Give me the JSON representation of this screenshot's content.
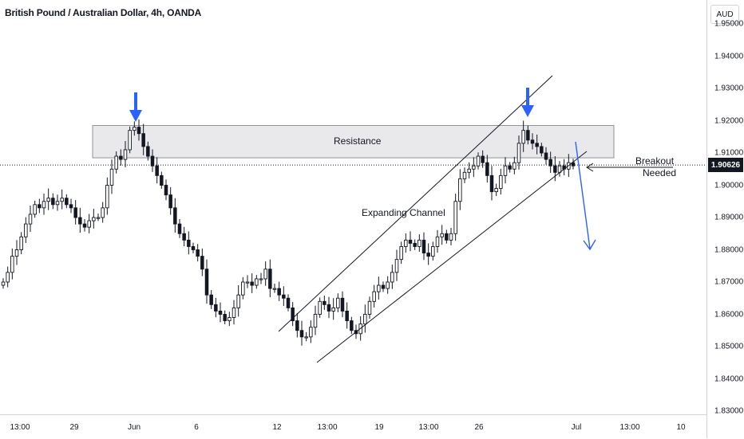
{
  "header": {
    "symbol_title": "British Pound / Australian Dollar, 4h, OANDA"
  },
  "price_axis": {
    "currency": "AUD",
    "last_price": "1.90626",
    "ticks": [
      "1.95000",
      "1.94000",
      "1.93000",
      "1.92000",
      "1.91000",
      "1.90000",
      "1.89000",
      "1.88000",
      "1.87000",
      "1.86000",
      "1.85000",
      "1.84000",
      "1.83000"
    ]
  },
  "time_axis": {
    "ticks": [
      "13:00",
      "29",
      "Jun",
      "6",
      "12",
      "13:00",
      "19",
      "13:00",
      "26",
      "Jul",
      "13:00",
      "10"
    ]
  },
  "annotations": {
    "resistance": "Resistance",
    "channel": "Expanding Channel",
    "breakout_line1": "Breakout",
    "breakout_line2": "Needed"
  },
  "colors": {
    "up": "#131722",
    "down": "#131722",
    "arrow": "#2962ff",
    "resistance_fill": "#e9e9ec",
    "resistance_border": "#787b86"
  },
  "chart_data": {
    "type": "candlestick",
    "symbol": "GBPAUD",
    "timeframe": "4h",
    "y_axis": {
      "min": 1.83,
      "max": 1.95,
      "scale": "linear",
      "label": "AUD"
    },
    "resistance_zone": {
      "low": 1.9085,
      "high": 1.9185
    },
    "last_price": 1.90626,
    "close_path": [
      1.87,
      1.873,
      1.878,
      1.88,
      1.884,
      1.888,
      1.891,
      1.894,
      1.893,
      1.895,
      1.896,
      1.894,
      1.895,
      1.896,
      1.894,
      1.893,
      1.89,
      1.888,
      1.887,
      1.889,
      1.89,
      1.89,
      1.893,
      1.9,
      1.905,
      1.909,
      1.908,
      1.911,
      1.917,
      1.918,
      1.916,
      1.912,
      1.909,
      1.906,
      1.903,
      1.9,
      1.897,
      1.893,
      1.888,
      1.885,
      1.883,
      1.881,
      1.88,
      1.878,
      1.874,
      1.866,
      1.863,
      1.861,
      1.86,
      1.858,
      1.859,
      1.862,
      1.866,
      1.87,
      1.87,
      1.869,
      1.871,
      1.871,
      1.874,
      1.868,
      1.868,
      1.866,
      1.865,
      1.862,
      1.858,
      1.855,
      1.853,
      1.853,
      1.856,
      1.86,
      1.864,
      1.863,
      1.861,
      1.862,
      1.865,
      1.861,
      1.858,
      1.855,
      1.854,
      1.857,
      1.86,
      1.864,
      1.867,
      1.869,
      1.868,
      1.87,
      1.873,
      1.877,
      1.881,
      1.883,
      1.882,
      1.881,
      1.883,
      1.879,
      1.878,
      1.881,
      1.884,
      1.885,
      1.883,
      1.885,
      1.895,
      1.902,
      1.904,
      1.905,
      1.906,
      1.909,
      1.907,
      1.903,
      1.898,
      1.899,
      1.903,
      1.906,
      1.905,
      1.907,
      1.913,
      1.917,
      1.914,
      1.913,
      1.912,
      1.91,
      1.908,
      1.906,
      1.904,
      1.906,
      1.905,
      1.907,
      1.906
    ],
    "channel": {
      "upper": {
        "from": [
          "Jun 12",
          1.8555
        ],
        "to": [
          "Jun 30",
          1.9345
        ]
      },
      "lower": {
        "from": [
          "Jun 12",
          1.8445
        ],
        "to": [
          "Jul 1",
          1.9095
        ]
      }
    },
    "markers": [
      {
        "type": "arrow-down",
        "at": "May 31",
        "price": 1.9215
      },
      {
        "type": "arrow-down",
        "at": "Jun 28",
        "price": 1.9245
      },
      {
        "type": "projection-arrow",
        "from": 1.9095,
        "to": 1.88
      }
    ]
  }
}
